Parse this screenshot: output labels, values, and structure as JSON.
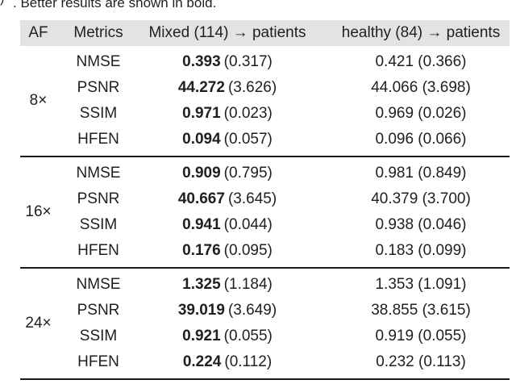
{
  "caption": {
    "fragment": ")",
    "text": ". Better results are shown in bold."
  },
  "colors": {
    "header_bg": "#e3e3e3",
    "rule": "#1a1a1a",
    "text": "#1f1f1f"
  },
  "table": {
    "headers": [
      "AF",
      "Metrics",
      "Mixed (114) → patients",
      "healthy (84) → patients"
    ],
    "groups": [
      {
        "af": "8×",
        "rows": [
          {
            "metric": "NMSE",
            "mixed_mean": "0.393",
            "mixed_std": "(0.317)",
            "healthy": "0.421 (0.366)"
          },
          {
            "metric": "PSNR",
            "mixed_mean": "44.272",
            "mixed_std": "(3.626)",
            "healthy": "44.066 (3.698)"
          },
          {
            "metric": "SSIM",
            "mixed_mean": "0.971",
            "mixed_std": "(0.023)",
            "healthy": "0.969 (0.026)"
          },
          {
            "metric": "HFEN",
            "mixed_mean": "0.094",
            "mixed_std": "(0.057)",
            "healthy": "0.096 (0.066)"
          }
        ]
      },
      {
        "af": "16×",
        "rows": [
          {
            "metric": "NMSE",
            "mixed_mean": "0.909",
            "mixed_std": "(0.795)",
            "healthy": "0.981 (0.849)"
          },
          {
            "metric": "PSNR",
            "mixed_mean": "40.667",
            "mixed_std": "(3.645)",
            "healthy": "40.379 (3.700)"
          },
          {
            "metric": "SSIM",
            "mixed_mean": "0.941",
            "mixed_std": "(0.044)",
            "healthy": "0.938 (0.046)"
          },
          {
            "metric": "HFEN",
            "mixed_mean": "0.176",
            "mixed_std": "(0.095)",
            "healthy": "0.183 (0.099)"
          }
        ]
      },
      {
        "af": "24×",
        "rows": [
          {
            "metric": "NMSE",
            "mixed_mean": "1.325",
            "mixed_std": "(1.184)",
            "healthy": "1.353 (1.091)"
          },
          {
            "metric": "PSNR",
            "mixed_mean": "39.019",
            "mixed_std": "(3.649)",
            "healthy": "38.855 (3.615)"
          },
          {
            "metric": "SSIM",
            "mixed_mean": "0.921",
            "mixed_std": "(0.055)",
            "healthy": "0.919 (0.055)"
          },
          {
            "metric": "HFEN",
            "mixed_mean": "0.224",
            "mixed_std": "(0.112)",
            "healthy": "0.232 (0.113)"
          }
        ]
      }
    ]
  }
}
